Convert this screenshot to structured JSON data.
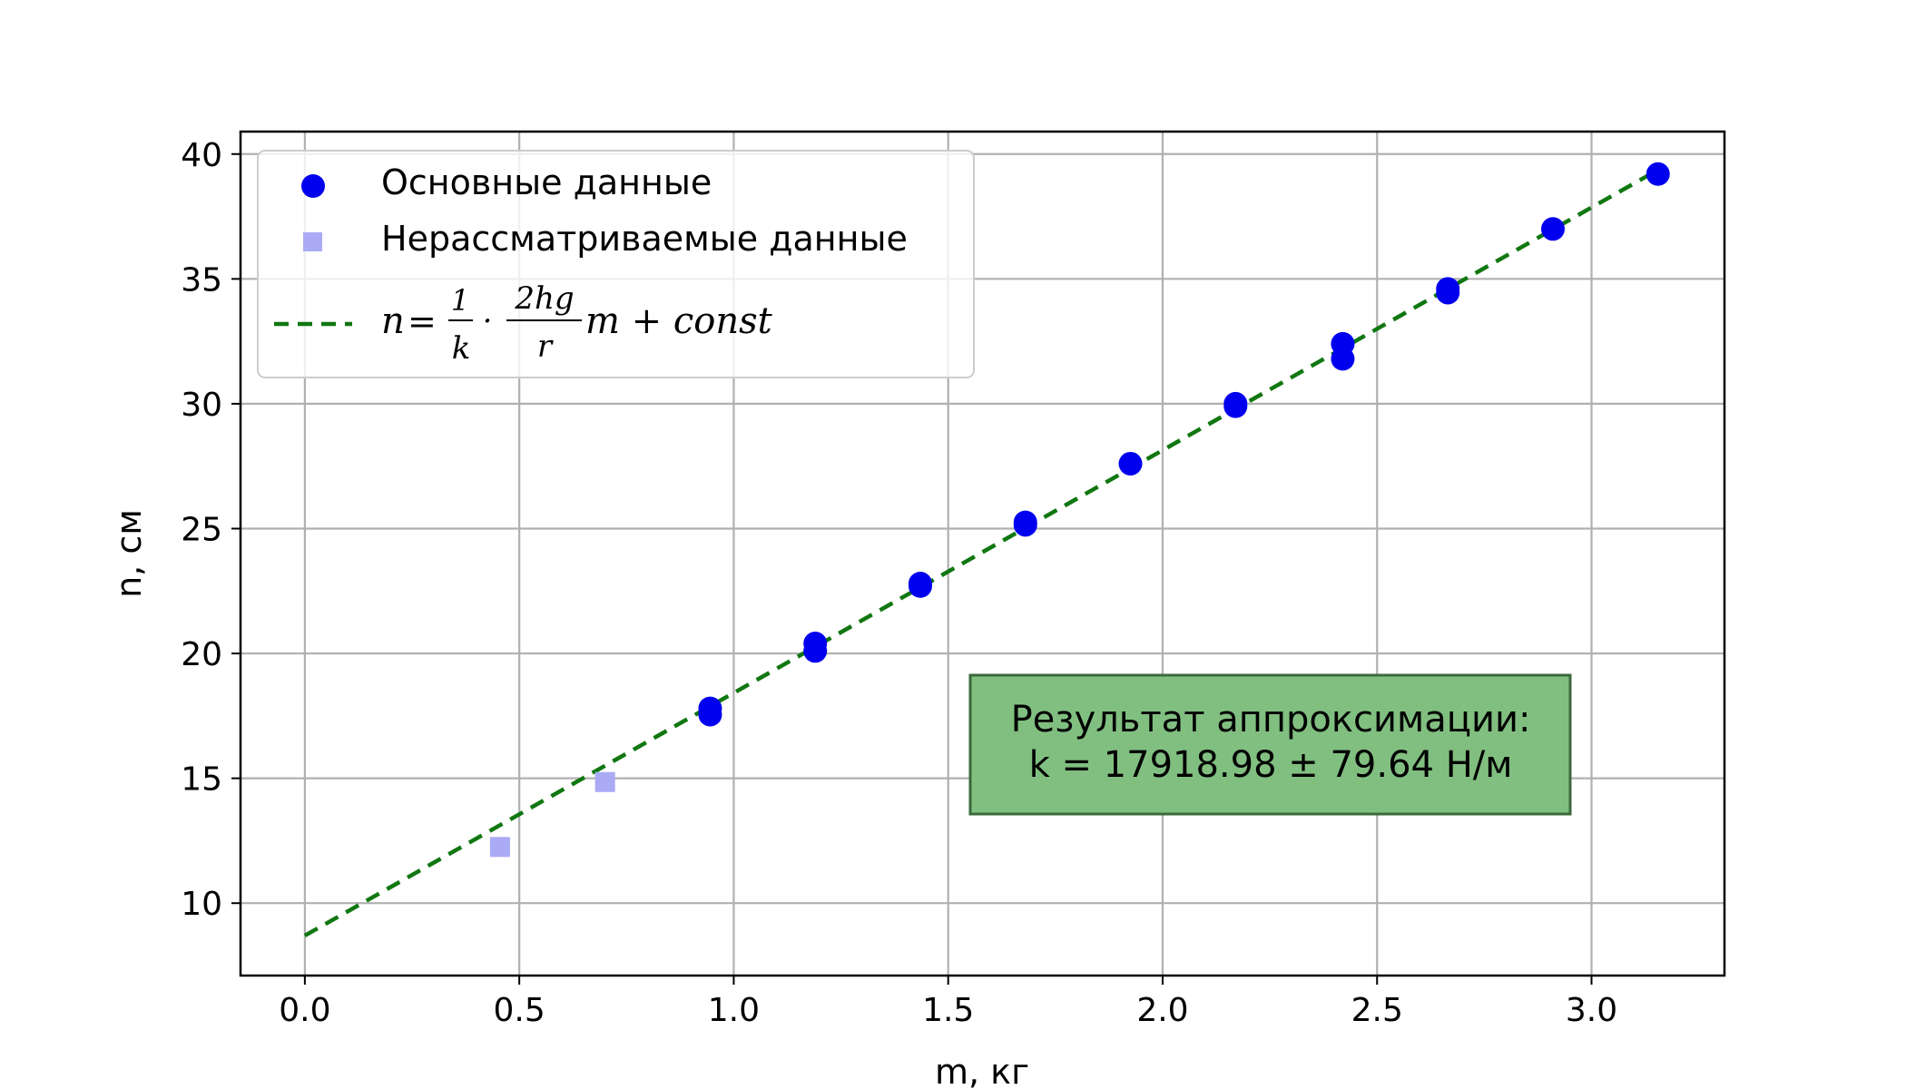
{
  "chart_data": {
    "type": "scatter",
    "xlabel": "m, кг",
    "ylabel": "n, см",
    "xlim": [
      -0.15,
      3.31
    ],
    "ylim": [
      7.1,
      40.9
    ],
    "xticks": [
      0.0,
      0.5,
      1.0,
      1.5,
      2.0,
      2.5,
      3.0
    ],
    "xtick_labels": [
      "0.0",
      "0.5",
      "1.0",
      "1.5",
      "2.0",
      "2.5",
      "3.0"
    ],
    "yticks": [
      10,
      15,
      20,
      25,
      30,
      35,
      40
    ],
    "ytick_labels": [
      "10",
      "15",
      "20",
      "25",
      "30",
      "35",
      "40"
    ],
    "grid": true,
    "legend_position": "top-left",
    "series": [
      {
        "name": "Основные данные",
        "kind": "scatter",
        "marker": "circle",
        "color": "#0000ee",
        "points": [
          [
            0.945,
            17.8
          ],
          [
            0.945,
            17.55
          ],
          [
            1.19,
            20.4
          ],
          [
            1.19,
            20.1
          ],
          [
            1.435,
            22.8
          ],
          [
            1.435,
            22.7
          ],
          [
            1.68,
            25.25
          ],
          [
            1.68,
            25.15
          ],
          [
            1.925,
            27.6
          ],
          [
            2.17,
            30.0
          ],
          [
            2.17,
            29.9
          ],
          [
            2.42,
            32.4
          ],
          [
            2.42,
            31.8
          ],
          [
            2.665,
            34.6
          ],
          [
            2.665,
            34.45
          ],
          [
            2.91,
            37.0
          ],
          [
            3.155,
            39.2
          ]
        ]
      },
      {
        "name": "Нерассматриваемые данные",
        "kind": "scatter",
        "marker": "square",
        "color": "#aaaaf5",
        "points": [
          [
            0.455,
            12.25
          ],
          [
            0.7,
            14.85
          ]
        ]
      },
      {
        "name": "n = 1/k · 2hg/r m + const",
        "kind": "line",
        "style": "dashed",
        "color": "#117711",
        "slope": 9.72,
        "intercept": 8.7,
        "x_range": [
          0.0,
          3.155
        ]
      }
    ],
    "legend_formula": {
      "lhs": "n",
      "eq": "=",
      "frac1_num": "1",
      "frac1_den": "k",
      "dot": "·",
      "frac2_num": "2hg",
      "frac2_den": "r",
      "tail": "m + const"
    },
    "annotation": {
      "line1": "Результат аппроксимации:",
      "line2": "k = 17918.98 ± 79.64 Н/м",
      "box_color": "#81bf81",
      "border_color": "#3a6a3a"
    }
  }
}
